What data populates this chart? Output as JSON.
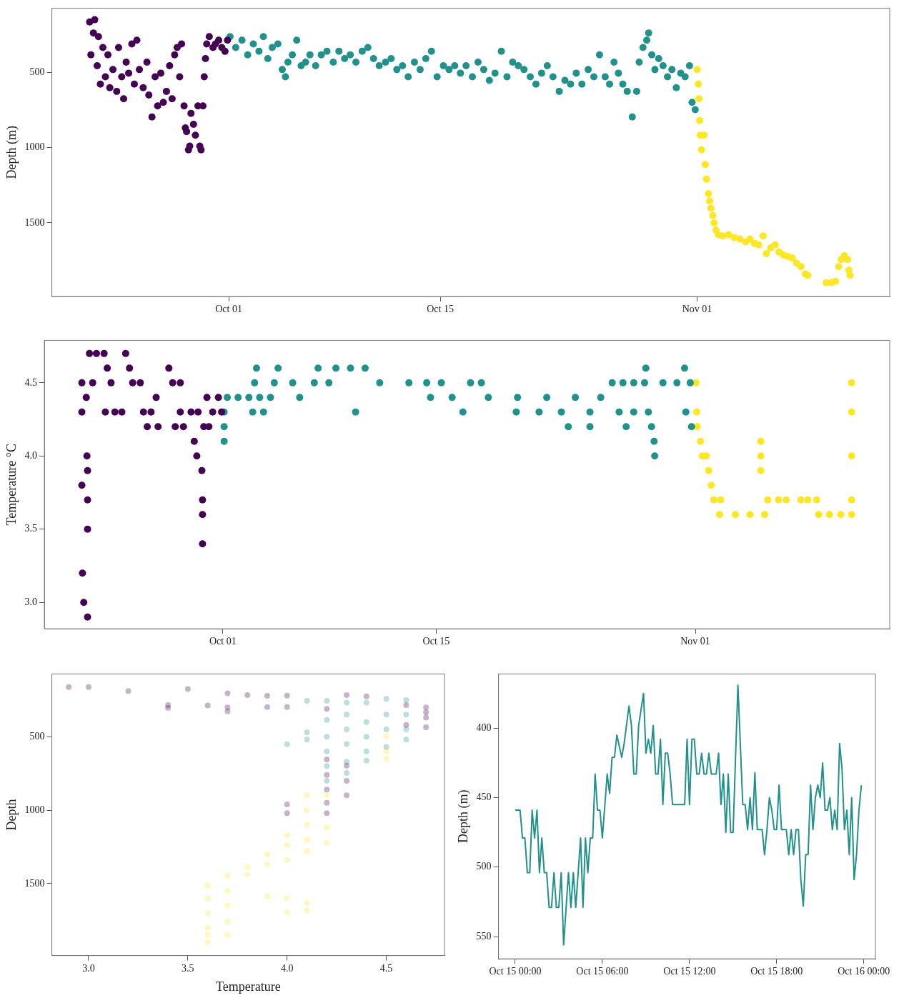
{
  "chart_data": [
    {
      "type": "scatter",
      "ylabel": "Depth (m)",
      "marker": "circle",
      "xlim": [
        "--09-19T07:00",
        "--11-13T18:00"
      ],
      "ylim": [
        1990,
        73
      ],
      "xticks": [
        {
          "value": "--10-01",
          "label": "Oct 01"
        },
        {
          "value": "--10-15",
          "label": "Oct 15"
        },
        {
          "value": "--11-01",
          "label": "Nov 01"
        }
      ],
      "yticks": [
        500,
        1000,
        1500
      ],
      "series": [
        {
          "color": "#440154",
          "x": [
            "--09-21T19:00",
            "--09-21T21:00",
            "--09-22T01:00",
            "--09-22T03:00",
            "--09-22T07:00",
            "--09-22T09:00",
            "--09-22T12:00",
            "--09-22T16:00",
            "--09-22T20:00",
            "--09-23T00:00",
            "--09-23T03:00",
            "--09-23T08:00",
            "--09-23T14:00",
            "--09-23T17:00",
            "--09-23T22:00",
            "--09-24T01:00",
            "--09-24T05:00",
            "--09-24T09:00",
            "--09-24T14:00",
            "--09-24T18:00",
            "--09-24T22:00",
            "--09-25T02:00",
            "--09-25T08:00",
            "--09-25T14:00",
            "--09-25T17:00",
            "--09-25T22:00",
            "--09-26T03:00",
            "--09-26T07:00",
            "--09-26T12:00",
            "--09-26T16:00",
            "--09-26T21:00",
            "--09-27T02:00",
            "--09-27T06:00",
            "--09-27T10:00",
            "--09-27T14:00",
            "--09-27T18:00",
            "--09-27T21:00",
            "--09-28T01:00",
            "--09-28T03:00",
            "--09-28T05:00",
            "--09-28T08:00",
            "--09-28T10:00",
            "--09-28T12:00",
            "--09-28T16:00",
            "--09-28T19:00",
            "--09-28T23:00",
            "--09-29T02:00",
            "--09-29T04:00",
            "--09-29T07:00",
            "--09-29T09:00",
            "--09-29T11:00",
            "--09-29T13:00",
            "--09-29T17:00",
            "--09-29T23:00",
            "--09-30T03:00",
            "--09-30T08:00",
            "--09-30T13:00",
            "--09-30T18:00",
            "--09-30T22:00"
          ],
          "values": [
            165,
            383,
            238,
            150,
            456,
            262,
            578,
            335,
            529,
            383,
            602,
            481,
            626,
            335,
            529,
            675,
            432,
            505,
            311,
            578,
            286,
            481,
            602,
            432,
            650,
            796,
            529,
            723,
            505,
            699,
            626,
            456,
            675,
            383,
            335,
            529,
            311,
            723,
            869,
            893,
            1015,
            990,
            772,
            845,
            917,
            723,
            990,
            1015,
            723,
            529,
            408,
            311,
            262,
            335,
            311,
            286,
            335,
            360,
            286
          ]
        },
        {
          "color": "#21918c",
          "x": [
            "--10-01T02:00",
            "--10-01T11:00",
            "--10-01T21:00",
            "--10-02T06:00",
            "--10-02T15:00",
            "--10-03T00:00",
            "--10-03T07:00",
            "--10-03T14:00",
            "--10-03T21:00",
            "--10-04T06:00",
            "--10-04T13:00",
            "--10-04T18:00",
            "--10-04T22:00",
            "--10-05T05:00",
            "--10-05T12:00",
            "--10-05T19:00",
            "--10-06T02:00",
            "--10-06T09:00",
            "--10-06T18:00",
            "--10-07T03:00",
            "--10-07T12:00",
            "--10-07T22:00",
            "--10-08T07:00",
            "--10-08T16:00",
            "--10-09T01:00",
            "--10-09T10:00",
            "--10-09T20:00",
            "--10-10T05:00",
            "--10-10T14:00",
            "--10-10T23:00",
            "--10-11T09:00",
            "--10-11T18:00",
            "--10-12T03:00",
            "--10-12T12:00",
            "--10-12T21:00",
            "--10-13T07:00",
            "--10-13T16:00",
            "--10-14T01:00",
            "--10-14T10:00",
            "--10-14T19:00",
            "--10-15T05:00",
            "--10-15T14:00",
            "--10-15T23:00",
            "--10-16T08:00",
            "--10-16T17:00",
            "--10-17T03:00",
            "--10-17T12:00",
            "--10-17T21:00",
            "--10-18T06:00",
            "--10-18T15:00",
            "--10-19T01:00",
            "--10-19T10:00",
            "--10-19T19:00",
            "--10-20T04:00",
            "--10-20T13:00",
            "--10-20T23:00",
            "--10-21T08:00",
            "--10-21T17:00",
            "--10-22T02:00",
            "--10-22T11:00",
            "--10-22T21:00",
            "--10-23T06:00",
            "--10-23T15:00",
            "--10-24T00:00",
            "--10-24T09:00",
            "--10-24T19:00",
            "--10-25T04:00",
            "--10-25T13:00",
            "--10-25T22:00",
            "--10-26T05:00",
            "--10-26T12:00",
            "--10-26T19:00",
            "--10-27T02:00",
            "--10-27T09:00",
            "--10-27T17:00",
            "--10-28T00:00",
            "--10-28T04:00",
            "--10-28T10:00",
            "--10-28T16:00",
            "--10-28T19:00",
            "--10-29T00:00",
            "--10-29T05:00",
            "--10-29T11:00",
            "--10-29T18:00",
            "--10-30T01:00",
            "--10-30T08:00",
            "--10-30T15:00",
            "--10-30T22:00",
            "--10-31T05:00",
            "--10-31T12:00",
            "--10-31T16:00",
            "--10-31T21:00"
          ],
          "values": [
            262,
            335,
            286,
            383,
            311,
            359,
            262,
            408,
            335,
            311,
            481,
            529,
            432,
            383,
            286,
            456,
            432,
            383,
            456,
            383,
            359,
            432,
            359,
            408,
            383,
            432,
            359,
            335,
            408,
            456,
            432,
            408,
            481,
            456,
            529,
            432,
            481,
            408,
            359,
            529,
            456,
            481,
            456,
            505,
            456,
            529,
            432,
            481,
            553,
            505,
            359,
            529,
            432,
            456,
            481,
            529,
            578,
            505,
            456,
            529,
            626,
            553,
            578,
            505,
            578,
            481,
            529,
            383,
            529,
            578,
            432,
            505,
            578,
            626,
            796,
            626,
            432,
            335,
            286,
            238,
            383,
            481,
            408,
            456,
            529,
            481,
            602,
            505,
            529,
            456,
            699,
            748
          ]
        },
        {
          "color": "#fde725",
          "x": [
            "--11-01T00:00",
            "--11-01T02:00",
            "--11-01T03:00",
            "--11-01T04:00",
            "--11-01T05:00",
            "--11-01T07:00",
            "--11-01T11:00",
            "--11-01T13:00",
            "--11-01T15:00",
            "--11-01T18:00",
            "--11-01T20:00",
            "--11-01T22:00",
            "--11-02T01:00",
            "--11-02T03:00",
            "--11-02T06:00",
            "--11-02T10:00",
            "--11-02T17:00",
            "--11-03T02:00",
            "--11-03T11:00",
            "--11-03T20:00",
            "--11-04T05:00",
            "--11-04T12:00",
            "--11-04T19:00",
            "--11-05T02:00",
            "--11-05T09:00",
            "--11-05T14:00",
            "--11-05T21:00",
            "--11-06T04:00",
            "--11-06T10:00",
            "--11-06T17:00",
            "--11-07T00:00",
            "--11-07T07:00",
            "--11-07T14:00",
            "--11-07T21:00",
            "--11-08T04:00",
            "--11-08T08:00",
            "--11-09T13:00",
            "--11-09T21:00",
            "--11-10T04:00",
            "--11-10T09:00",
            "--11-10T13:00",
            "--11-10T18:00",
            "--11-10T23:00",
            "--11-11T01:00",
            "--11-11T03:00"
          ],
          "values": [
            481,
            578,
            675,
            820,
            917,
            1015,
            917,
            1112,
            1209,
            1306,
            1354,
            1403,
            1451,
            1500,
            1548,
            1578,
            1587,
            1578,
            1597,
            1607,
            1626,
            1607,
            1636,
            1646,
            1587,
            1704,
            1665,
            1646,
            1694,
            1714,
            1723,
            1733,
            1767,
            1791,
            1840,
            1849,
            1898,
            1898,
            1888,
            1791,
            1743,
            1718,
            1743,
            1815,
            1849
          ]
        }
      ]
    },
    {
      "type": "scatter",
      "ylabel": "Temperature °C",
      "marker": "circle",
      "xlim": [
        "--09-19T07:00",
        "--11-13T18:00"
      ],
      "ylim": [
        2.82,
        4.79
      ],
      "xticks": [
        {
          "value": "--10-01",
          "label": "Oct 01"
        },
        {
          "value": "--10-15",
          "label": "Oct 15"
        },
        {
          "value": "--11-01",
          "label": "Nov 01"
        }
      ],
      "yticks": [
        {
          "value": 3,
          "label": "3.0"
        },
        3.5,
        {
          "value": 4,
          "label": "4.0"
        },
        4.5
      ],
      "series": [
        {
          "color": "#440154",
          "x": [
            "--09-21T18:00",
            "--09-21T18:00",
            "--09-21T18:00",
            "--09-21T19:00",
            "--09-21T21:00",
            "--09-21T22:00",
            "--09-22T01:00",
            "--09-22T02:00",
            "--09-22T03:00",
            "--09-22T03:00",
            "--09-22T03:00",
            "--09-22T03:00",
            "--09-22T06:00",
            "--09-22T11:00",
            "--09-22T17:00",
            "--09-23T05:00",
            "--09-23T10:00",
            "--09-23T16:00",
            "--09-23T07:00",
            "--09-23T22:00",
            "--09-24T09:00",
            "--09-24T15:00",
            "--09-24T21:00",
            "--09-25T02:00",
            "--09-25T14:00",
            "--09-25T19:00",
            "--09-26T01:00",
            "--09-26T07:00",
            "--09-26T15:00",
            "--09-26T18:00",
            "--09-27T11:00",
            "--09-27T17:00",
            "--09-28T05:00",
            "--09-27T21:00",
            "--09-28T05:00",
            "--09-28T10:00",
            "--09-28T22:00",
            "--09-29T03:00",
            "--09-29T07:00",
            "--09-29T09:00",
            "--09-29T15:00",
            "--09-29T16:00",
            "--09-29T16:00",
            "--09-29T16:00",
            "--09-29T18:00",
            "--09-29T23:00",
            "--09-30T02:00",
            "--09-30T08:00",
            "--09-30T17:00",
            "--09-30T22:00"
          ],
          "values": [
            4.5,
            4.3,
            3.8,
            3.2,
            3.0,
            null,
            4.4,
            4.0,
            3.9,
            3.7,
            3.5,
            2.9,
            4.7,
            4.5,
            4.7,
            4.7,
            4.6,
            4.5,
            4.3,
            4.3,
            4.3,
            4.7,
            4.6,
            4.5,
            4.5,
            4.3,
            4.2,
            4.3,
            4.4,
            4.2,
            4.6,
            4.5,
            4.5,
            4.2,
            4.3,
            4.2,
            4.3,
            4.1,
            4.0,
            4.3,
            3.9,
            3.7,
            3.6,
            3.4,
            4.2,
            4.4,
            4.2,
            4.3,
            4.4,
            4.3
          ]
        },
        {
          "color": "#21918c",
          "x": [
            "--10-01T02:00",
            "--10-01T02:00",
            "--10-01T02:00",
            "--10-01T07:00",
            "--10-02T00:00",
            "--10-02T17:00",
            "--10-03T02:00",
            "--10-03T05:00",
            "--10-02T23:00",
            "--10-03T16:00",
            "--10-03T10:00",
            "--10-04T03:00",
            "--10-04T15:00",
            "--10-04T09:00",
            "--10-05T14:00",
            "--10-06T01:00",
            "--10-07T00:00",
            "--10-07T06:00",
            "--10-08T10:00",
            "--10-09T09:00",
            "--10-10T08:00",
            "--10-07T23:00",
            "--10-09T17:00",
            "--10-11T07:00",
            "--10-13T05:00",
            "--10-14T09:00",
            "--10-14T15:00",
            "--10-15T08:00",
            "--10-16T01:00",
            "--10-16T18:00",
            "--10-17T06:00",
            "--10-17T23:00",
            "--10-18T10:00",
            "--10-20T08:00",
            "--10-22T06:00",
            "--10-24T03:00",
            "--10-25T19:00",
            "--10-20T06:00",
            "--10-21T18:00",
            "--10-23T05:00",
            "--10-25T02:00",
            "--10-27T00:00",
            "--10-27T23:00",
            "--10-23T16:00",
            "--10-25T02:00",
            "--10-27T11:00",
            "--10-26T13:00",
            "--10-27T06:00",
            "--10-27T23:00",
            "--10-28T16:00",
            "--10-28T18:00",
            "--10-28T22:00",
            "--10-29T07:00",
            "--10-29T08:00",
            "--10-29T03:00",
            "--10-29T21:00",
            "--10-30T19:00",
            "--10-31T07:00",
            "--10-31T09:00",
            "--10-31T16:00",
            "--10-31T18:00"
          ],
          "values": [
            4.3,
            4.2,
            4.1,
            4.4,
            4.4,
            4.4,
            4.5,
            4.6,
            4.3,
            4.3,
            4.4,
            4.4,
            4.6,
            4.5,
            4.5,
            4.4,
            4.5,
            4.6,
            4.6,
            4.6,
            4.6,
            4.5,
            4.3,
            4.5,
            4.5,
            4.5,
            4.4,
            4.5,
            4.4,
            4.3,
            4.5,
            4.5,
            4.4,
            4.4,
            4.4,
            4.4,
            4.4,
            4.3,
            4.3,
            4.3,
            4.3,
            4.3,
            4.3,
            4.2,
            4.2,
            4.2,
            4.5,
            4.5,
            4.5,
            4.5,
            4.6,
            4.3,
            4.1,
            4.0,
            4.2,
            4.5,
            4.5,
            4.6,
            4.3,
            4.5,
            4.2
          ]
        },
        {
          "color": "#fde725",
          "x": [
            "--11-01T01:00",
            "--11-01T02:00",
            "--11-01T03:00",
            "--11-01T08:00",
            "--11-01T11:00",
            "--11-01T17:00",
            "--11-01T21:00",
            "--11-02T01:00",
            "--11-02T05:00",
            "--11-02T16:00",
            "--11-02T14:00",
            "--11-03T15:00",
            "--11-04T14:00",
            "--11-05T13:00",
            "--11-05T07:00",
            "--11-05T07:00",
            "--11-05T07:00",
            "--11-05T18:00",
            "--11-06T11:00",
            "--11-06T23:00",
            "--11-07T22:00",
            "--11-08T09:00",
            "--11-08T23:00",
            "--11-09T02:00",
            "--11-09T19:00",
            "--11-10T13:00",
            "--11-11T06:00",
            "--11-11T06:00",
            "--11-11T06:00",
            "--11-11T06:00",
            "--11-11T06:00"
          ],
          "values": [
            4.5,
            4.3,
            4.2,
            4.1,
            4.0,
            4.0,
            3.9,
            3.8,
            3.7,
            3.7,
            3.6,
            3.6,
            3.6,
            3.6,
            4.1,
            4.0,
            3.9,
            3.7,
            3.7,
            3.7,
            3.7,
            3.7,
            3.7,
            3.6,
            3.6,
            3.6,
            3.6,
            4.5,
            4.3,
            4.0,
            3.7
          ]
        }
      ]
    },
    {
      "type": "scatter",
      "xlabel": "Temperature",
      "ylabel": "Depth",
      "marker": "circle",
      "xlim": [
        2.815,
        4.793
      ],
      "ylim": [
        1990,
        73
      ],
      "xticks": [
        {
          "value": 3,
          "label": "3.0"
        },
        3.5,
        {
          "value": 4,
          "label": "4.0"
        },
        4.5
      ],
      "yticks": [
        500,
        1000,
        1500
      ],
      "series": [
        {
          "color": "#440154",
          "x": [
            2.9,
            3.0,
            3.2,
            3.4,
            3.4,
            3.5,
            3.6,
            3.7,
            3.7,
            3.7,
            3.8,
            3.9,
            3.9,
            4.0,
            4.0,
            4.0,
            4.0,
            4.2,
            4.2,
            4.2,
            4.2,
            4.2,
            4.2,
            4.3,
            4.3,
            4.3,
            4.3,
            4.4,
            4.6,
            4.6,
            4.7,
            4.7,
            4.7,
            4.7
          ],
          "values": [
            162,
            162,
            189,
            285,
            305,
            175,
            288,
            205,
            301,
            327,
            217,
            222,
            298,
            221,
            298,
            961,
            1020,
            310,
            655,
            760,
            860,
            950,
            1020,
            217,
            697,
            801,
            899,
            226,
            285,
            420,
            301,
            335,
            370,
            436
          ]
        },
        {
          "color": "#21918c",
          "x": [
            4.1,
            4.1,
            4.1,
            4.0,
            4.2,
            4.2,
            4.2,
            4.2,
            4.2,
            4.2,
            4.3,
            4.3,
            4.3,
            4.3,
            4.3,
            4.3,
            4.4,
            4.4,
            4.4,
            4.4,
            4.4,
            4.5,
            4.5,
            4.5,
            4.5,
            4.6,
            4.6,
            4.6,
            4.6
          ],
          "values": [
            256,
            470,
            520,
            551,
            256,
            386,
            500,
            600,
            700,
            800,
            268,
            350,
            450,
            550,
            670,
            747,
            268,
            400,
            500,
            600,
            663,
            242,
            350,
            450,
            570,
            251,
            350,
            450,
            520
          ]
        },
        {
          "color": "#fde725",
          "x": [
            3.6,
            3.6,
            3.6,
            3.6,
            3.6,
            3.6,
            3.7,
            3.7,
            3.7,
            3.7,
            3.7,
            3.8,
            3.8,
            3.9,
            3.9,
            3.9,
            4.0,
            4.0,
            4.0,
            4.0,
            4.0,
            4.1,
            4.1,
            4.1,
            4.1,
            4.1,
            4.1,
            4.1,
            4.2,
            4.2,
            4.2,
            4.5,
            4.5,
            4.5
          ],
          "values": [
            1513,
            1600,
            1700,
            1800,
            1850,
            1901,
            1446,
            1550,
            1650,
            1760,
            1850,
            1387,
            1438,
            1303,
            1370,
            1586,
            1172,
            1236,
            1340,
            1598,
            1695,
            899,
            1000,
            1100,
            1200,
            1278,
            1631,
            1682,
            899,
            1116,
            1222,
            495,
            600,
            650
          ]
        }
      ]
    },
    {
      "type": "line",
      "ylabel": "Depth (m)",
      "marker": "none",
      "xlim": [
        "--10-14T22:51",
        "--10-16T00:48"
      ],
      "ylim": [
        566,
        361
      ],
      "xticks": [
        {
          "value": "--10-15T00:00",
          "label": "Oct 15 00:00"
        },
        {
          "value": "--10-15T06:00",
          "label": "Oct 15 06:00"
        },
        {
          "value": "--10-15T12:00",
          "label": "Oct 15 12:00"
        },
        {
          "value": "--10-15T18:00",
          "label": "Oct 15 18:00"
        },
        {
          "value": "--10-16T00:00",
          "label": "Oct 16 00:00"
        }
      ],
      "yticks": [
        400,
        450,
        500,
        550
      ],
      "series": [
        {
          "color": "#21918c",
          "x": [
            "--10-15T00:00",
            "--10-15T00:20",
            "--10-15T00:30",
            "--10-15T00:40",
            "--10-15T00:50",
            "--10-15T01:00",
            "--10-15T01:10",
            "--10-15T01:20",
            "--10-15T01:30",
            "--10-15T01:40",
            "--10-15T01:50",
            "--10-15T02:00",
            "--10-15T02:10",
            "--10-15T02:20",
            "--10-15T02:30",
            "--10-15T02:40",
            "--10-15T02:50",
            "--10-15T03:00",
            "--10-15T03:10",
            "--10-15T03:20",
            "--10-15T03:40",
            "--10-15T03:50",
            "--10-15T04:00",
            "--10-15T04:10",
            "--10-15T04:30",
            "--10-15T04:40",
            "--10-15T04:50",
            "--10-15T05:00",
            "--10-15T05:10",
            "--10-15T05:20",
            "--10-15T05:30",
            "--10-15T05:40",
            "--10-15T05:50",
            "--10-15T06:00",
            "--10-15T06:20",
            "--10-15T06:30",
            "--10-15T06:40",
            "--10-15T06:50",
            "--10-15T07:00",
            "--10-15T07:20",
            "--10-15T07:30",
            "--10-15T07:50",
            "--10-15T08:00",
            "--10-15T08:10",
            "--10-15T08:20",
            "--10-15T08:30",
            "--10-15T08:50",
            "--10-15T09:00",
            "--10-15T09:10",
            "--10-15T09:20",
            "--10-15T09:30",
            "--10-15T09:40",
            "--10-15T09:50",
            "--10-15T10:00",
            "--10-15T10:10",
            "--10-15T10:20",
            "--10-15T10:30",
            "--10-15T10:40",
            "--10-15T10:50",
            "--10-15T11:40",
            "--10-15T11:50",
            "--10-15T12:00",
            "--10-15T12:10",
            "--10-15T12:20",
            "--10-15T12:30",
            "--10-15T12:40",
            "--10-15T12:50",
            "--10-15T13:00",
            "--10-15T13:10",
            "--10-15T13:20",
            "--10-15T13:30",
            "--10-15T13:50",
            "--10-15T14:00",
            "--10-15T14:10",
            "--10-15T14:20",
            "--10-15T14:30",
            "--10-15T14:40",
            "--10-15T14:50",
            "--10-15T15:00",
            "--10-15T15:20",
            "--10-15T15:40",
            "--10-15T15:50",
            "--10-15T16:00",
            "--10-15T16:10",
            "--10-15T16:20",
            "--10-15T16:30",
            "--10-15T16:40",
            "--10-15T17:00",
            "--10-15T17:10",
            "--10-15T17:20",
            "--10-15T17:30",
            "--10-15T17:40",
            "--10-15T17:50",
            "--10-15T18:00",
            "--10-15T18:10",
            "--10-15T18:20",
            "--10-15T18:40",
            "--10-15T18:50",
            "--10-15T19:00",
            "--10-15T19:10",
            "--10-15T19:20",
            "--10-15T19:30",
            "--10-15T19:40",
            "--10-15T19:50",
            "--10-15T20:00",
            "--10-15T20:10",
            "--10-15T20:20",
            "--10-15T20:30",
            "--10-15T20:40",
            "--10-15T20:50",
            "--10-15T21:00",
            "--10-15T21:10",
            "--10-15T21:20",
            "--10-15T21:30",
            "--10-15T21:40",
            "--10-15T21:50",
            "--10-15T22:00",
            "--10-15T22:10",
            "--10-15T22:20",
            "--10-15T22:30",
            "--10-15T22:40",
            "--10-15T22:50",
            "--10-15T23:00",
            "--10-15T23:10",
            "--10-15T23:20",
            "--10-15T23:30",
            "--10-15T23:40",
            "--10-15T23:50"
          ],
          "values": [
            459,
            459,
            479,
            479,
            504,
            504,
            459,
            479,
            459,
            504,
            479,
            504,
            504,
            529,
            529,
            504,
            529,
            529,
            504,
            556,
            504,
            529,
            504,
            529,
            479,
            529,
            479,
            504,
            479,
            479,
            433,
            459,
            459,
            479,
            433,
            447,
            421,
            421,
            405,
            421,
            411,
            384,
            398,
            433,
            433,
            398,
            375,
            418,
            408,
            418,
            398,
            433,
            433,
            408,
            455,
            418,
            418,
            433,
            455,
            455,
            408,
            455,
            408,
            408,
            433,
            433,
            418,
            433,
            433,
            418,
            433,
            433,
            418,
            455,
            433,
            475,
            433,
            475,
            475,
            369,
            455,
            455,
            473,
            450,
            473,
            432,
            473,
            473,
            491,
            473,
            450,
            459,
            473,
            473,
            441,
            473,
            473,
            491,
            473,
            491,
            473,
            473,
            509,
            528,
            491,
            491,
            441,
            473,
            450,
            441,
            450,
            425,
            459,
            459,
            450,
            473,
            459,
            473,
            411,
            429,
            473,
            459,
            491,
            450,
            509,
            491,
            459,
            441
          ]
        }
      ]
    }
  ]
}
